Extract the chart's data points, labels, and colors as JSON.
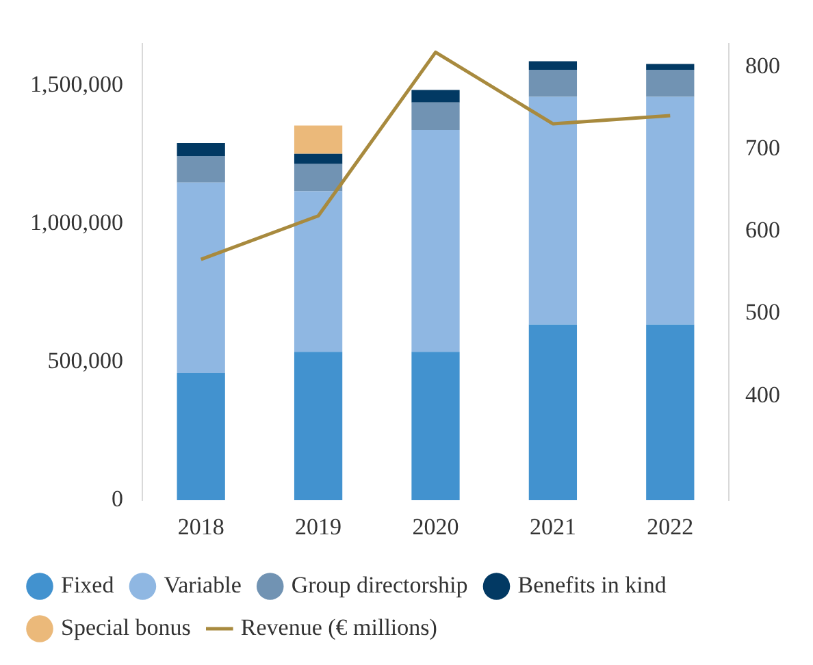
{
  "chart_data": {
    "type": "bar",
    "stacked": true,
    "categories": [
      "2018",
      "2019",
      "2020",
      "2021",
      "2022"
    ],
    "series": [
      {
        "name": "Fixed",
        "color": "#4292cf",
        "values": [
          461000,
          537000,
          537000,
          635000,
          635000
        ]
      },
      {
        "name": "Variable",
        "color": "#8fb7e2",
        "values": [
          688000,
          581000,
          802000,
          824000,
          824000
        ]
      },
      {
        "name": "Group directorship",
        "color": "#7193b3",
        "values": [
          96000,
          98000,
          100000,
          98000,
          98000
        ]
      },
      {
        "name": "Benefits in kind",
        "color": "#023963",
        "values": [
          47000,
          37000,
          45000,
          31000,
          21000
        ]
      },
      {
        "name": "Special bonus",
        "color": "#ebb97a",
        "values": [
          0,
          102000,
          0,
          0,
          0
        ]
      },
      {
        "name": "Revenue (€ millions)",
        "type": "line",
        "axis": "y2",
        "color": "#a88a3e",
        "values": [
          566,
          619,
          818,
          731,
          741
        ]
      }
    ],
    "yticks": [
      0,
      {
        "value": 500000,
        "label": "500,000"
      },
      {
        "value": 1000000,
        "label": "1,000,000"
      },
      {
        "value": 1500000,
        "label": "1,500,000"
      }
    ],
    "ylim": [
      0,
      1650000
    ],
    "y2lim": [
      273,
      828
    ],
    "y2ticks": [
      400,
      500,
      600,
      700,
      800
    ],
    "grid": false,
    "legend": "bottom",
    "marker": "none"
  }
}
